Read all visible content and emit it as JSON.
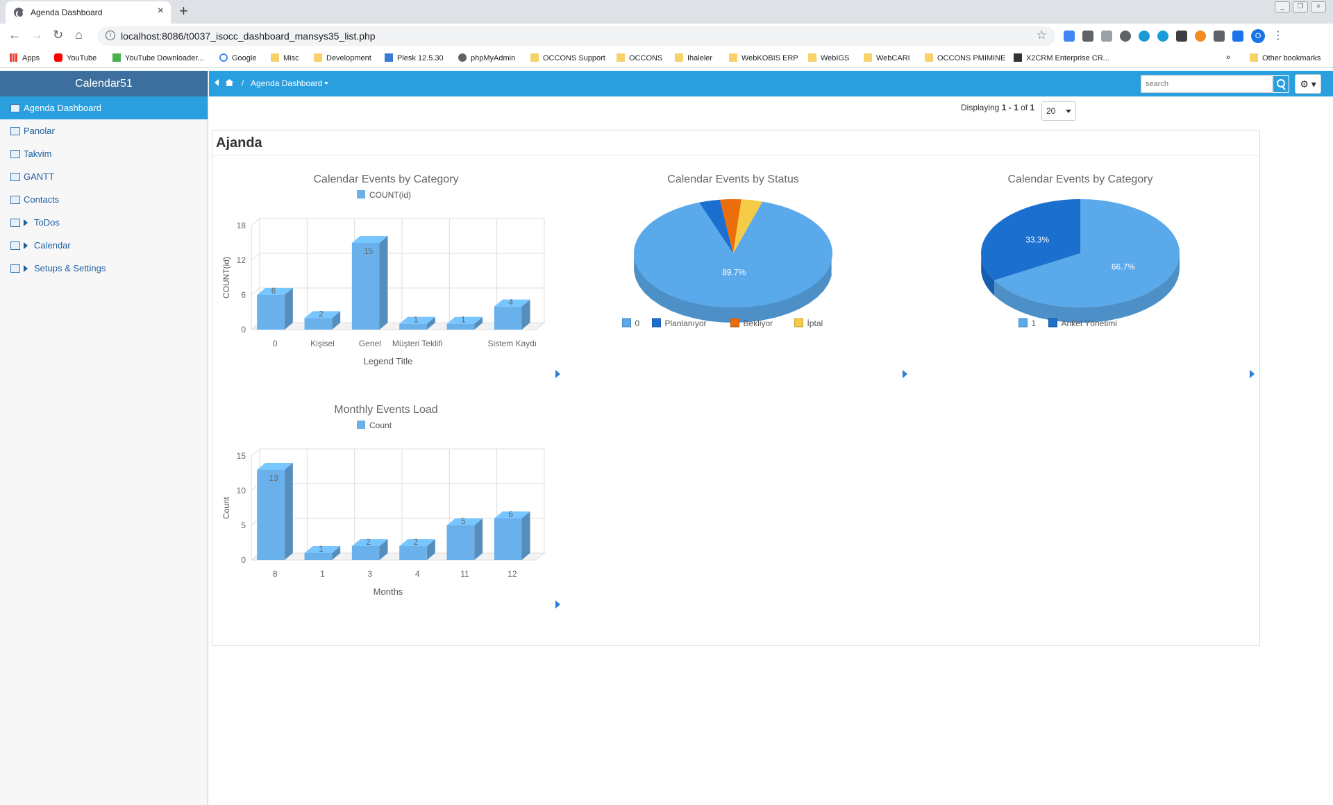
{
  "browser": {
    "tab_title": "Agenda Dashboard",
    "url": "localhost:8086/t0037_isocc_dashboard_mansys35_list.php",
    "bookmarks": [
      "Apps",
      "YouTube",
      "YouTube Downloader...",
      "Google",
      "Misc",
      "Development",
      "Plesk 12.5.30",
      "phpMyAdmin",
      "OCCONS Support",
      "OCCONS",
      "Ihaleler",
      "WebKOBIS ERP",
      "WebIGS",
      "WebCARI",
      "OCCONS PMIMINE",
      "X2CRM Enterprise CR...",
      "»",
      "Other bookmarks"
    ],
    "profile_initial": "O"
  },
  "sidebar": {
    "brand": "Calendar51",
    "items": [
      {
        "label": "Agenda Dashboard",
        "active": true,
        "expandable": false
      },
      {
        "label": "Panolar",
        "active": false,
        "expandable": false
      },
      {
        "label": "Takvim",
        "active": false,
        "expandable": false
      },
      {
        "label": "GANTT",
        "active": false,
        "expandable": false
      },
      {
        "label": "Contacts",
        "active": false,
        "expandable": false
      },
      {
        "label": "ToDos",
        "active": false,
        "expandable": true
      },
      {
        "label": "Calendar",
        "active": false,
        "expandable": true
      },
      {
        "label": "Setups & Settings",
        "active": false,
        "expandable": true
      }
    ]
  },
  "topnav": {
    "separator": "/",
    "page": "Agenda Dashboard",
    "search_placeholder": "search"
  },
  "paging": {
    "prefix": "Displaying",
    "from": "1",
    "dash": "-",
    "to": "1",
    "of": "of",
    "total": "1",
    "page_size": "20"
  },
  "panel": {
    "title": "Ajanda"
  },
  "colors": {
    "accent": "#2a9fe0",
    "brand_bar": "#3c6f9d",
    "bar": "#6ab1ec",
    "pie_light": "#5aa9ea",
    "pie_dark": "#1b6fcf",
    "pie_orange": "#ec6d0a",
    "pie_yellow": "#f6cb45"
  },
  "chart_data": [
    {
      "type": "bar",
      "title": "Calendar Events by Category",
      "legend": "COUNT(id)",
      "xlabel": "Legend Title",
      "ylabel": "COUNT(id)",
      "ylim": [
        0,
        18
      ],
      "yticks": [
        0,
        6,
        12,
        18
      ],
      "categories": [
        "0",
        "Kişisel",
        "Genel",
        "Müşteri Teklifi",
        "",
        "Sistem Kaydı"
      ],
      "values": [
        6,
        2,
        15,
        1,
        1,
        4
      ]
    },
    {
      "type": "pie",
      "title": "Calendar Events by Status",
      "labels": [
        "0",
        "Planlanıyor",
        "Bekliyor",
        "İptal"
      ],
      "values": [
        89.7,
        3.45,
        3.45,
        3.45
      ],
      "slice_labels": [
        "89.7%",
        "",
        "",
        ""
      ]
    },
    {
      "type": "pie",
      "title": "Calendar Events by Category",
      "labels": [
        "1",
        "Anket Yönetimi"
      ],
      "values": [
        66.7,
        33.3
      ],
      "slice_labels": [
        "66.7%",
        "33.3%"
      ]
    },
    {
      "type": "bar",
      "title": "Monthly Events Load",
      "legend": "Count",
      "xlabel": "Months",
      "ylabel": "Count",
      "ylim": [
        0,
        15
      ],
      "yticks": [
        0,
        5,
        10,
        15
      ],
      "categories": [
        "8",
        "1",
        "3",
        "4",
        "11",
        "12"
      ],
      "values": [
        13,
        1,
        2,
        2,
        5,
        6
      ]
    }
  ]
}
